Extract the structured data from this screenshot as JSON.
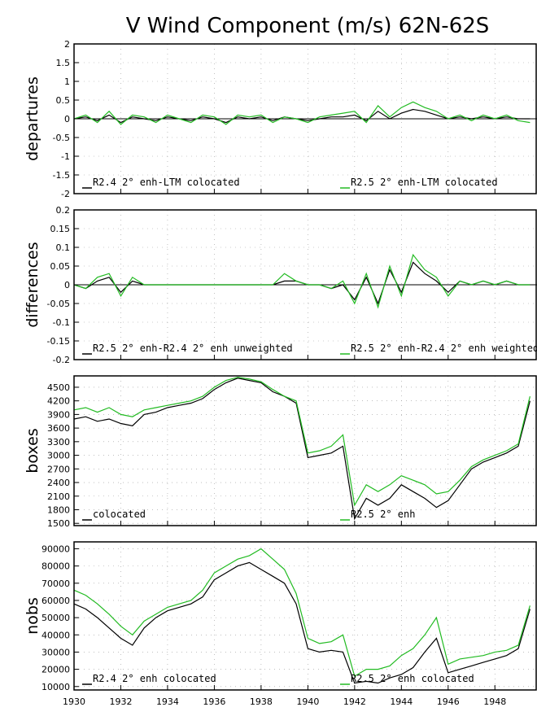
{
  "figure": {
    "title": "V Wind Component (m/s) 62N-62S"
  },
  "colors": {
    "series_a": "#000000",
    "series_b": "#22bb22",
    "grid": "#999999",
    "zero": "#000000"
  },
  "x_axis": {
    "range": [
      1930,
      1949.8
    ],
    "ticks": [
      1930,
      1932,
      1934,
      1936,
      1938,
      1940,
      1942,
      1944,
      1946,
      1948
    ],
    "tick_labels": [
      "1930",
      "1932",
      "1934",
      "1936",
      "1938",
      "1940",
      "1942",
      "1944",
      "1946",
      "1948"
    ]
  },
  "chart_data": [
    {
      "type": "line",
      "ylabel": "departures",
      "ylim": [
        -2,
        2
      ],
      "yticks": [
        -2,
        -1.5,
        -1,
        -0.5,
        0,
        0.5,
        1,
        1.5,
        2
      ],
      "ytick_labels": [
        "-2",
        "-1.5",
        "-1",
        "-0.5",
        "0",
        "0.5",
        "1",
        "1.5",
        "2"
      ],
      "zero_line": true,
      "grid": true,
      "series": [
        {
          "name": "R2.4 2° enh-LTM colocated",
          "x": [
            1930,
            1930.5,
            1931,
            1931.5,
            1932,
            1932.5,
            1933,
            1933.5,
            1934,
            1934.5,
            1935,
            1935.5,
            1936,
            1936.5,
            1937,
            1937.5,
            1938,
            1938.5,
            1939,
            1939.5,
            1940,
            1940.5,
            1941,
            1941.5,
            1942,
            1942.5,
            1943,
            1943.5,
            1944,
            1944.5,
            1945,
            1945.5,
            1946,
            1946.5,
            1947,
            1947.5,
            1948,
            1948.5,
            1949,
            1949.5
          ],
          "y": [
            0.0,
            0.05,
            -0.05,
            0.1,
            -0.1,
            0.05,
            0.0,
            -0.05,
            0.05,
            0.0,
            -0.05,
            0.05,
            0.0,
            -0.1,
            0.05,
            0.0,
            0.05,
            -0.05,
            0.05,
            0.0,
            -0.05,
            0.0,
            0.05,
            0.05,
            0.1,
            -0.05,
            0.2,
            0.0,
            0.15,
            0.25,
            0.2,
            0.1,
            0.0,
            0.05,
            0.0,
            0.05,
            0.0,
            0.05,
            0.0,
            0.0
          ]
        },
        {
          "name": "R2.5 2° enh-LTM colocated",
          "x": [
            1930,
            1930.5,
            1931,
            1931.5,
            1932,
            1932.5,
            1933,
            1933.5,
            1934,
            1934.5,
            1935,
            1935.5,
            1936,
            1936.5,
            1937,
            1937.5,
            1938,
            1938.5,
            1939,
            1939.5,
            1940,
            1940.5,
            1941,
            1941.5,
            1942,
            1942.5,
            1943,
            1943.5,
            1944,
            1944.5,
            1945,
            1945.5,
            1946,
            1946.5,
            1947,
            1947.5,
            1948,
            1948.5,
            1949,
            1949.5
          ],
          "y": [
            0.0,
            0.1,
            -0.1,
            0.2,
            -0.15,
            0.1,
            0.05,
            -0.1,
            0.1,
            0.0,
            -0.1,
            0.1,
            0.05,
            -0.15,
            0.1,
            0.05,
            0.1,
            -0.1,
            0.05,
            0.0,
            -0.1,
            0.05,
            0.1,
            0.15,
            0.2,
            -0.1,
            0.35,
            0.05,
            0.3,
            0.45,
            0.3,
            0.2,
            0.0,
            0.1,
            -0.05,
            0.1,
            0.0,
            0.1,
            -0.05,
            -0.1
          ]
        }
      ]
    },
    {
      "type": "line",
      "ylabel": "differences",
      "ylim": [
        -0.2,
        0.2
      ],
      "yticks": [
        -0.2,
        -0.15,
        -0.1,
        -0.05,
        0,
        0.05,
        0.1,
        0.15,
        0.2
      ],
      "ytick_labels": [
        "-0.2",
        "-0.15",
        "-0.1",
        "-0.05",
        "0",
        "0.05",
        "0.1",
        "0.15",
        "0.2"
      ],
      "zero_line": true,
      "grid": true,
      "series": [
        {
          "name": "R2.5 2° enh-R2.4 2° enh unweighted",
          "x": [
            1930,
            1930.5,
            1931,
            1931.5,
            1932,
            1932.5,
            1933,
            1933.5,
            1934,
            1934.5,
            1935,
            1935.5,
            1936,
            1936.5,
            1937,
            1937.5,
            1938,
            1938.5,
            1939,
            1939.5,
            1940,
            1940.5,
            1941,
            1941.5,
            1942,
            1942.5,
            1943,
            1943.5,
            1944,
            1944.5,
            1945,
            1945.5,
            1946,
            1946.5,
            1947,
            1947.5,
            1948,
            1948.5,
            1949,
            1949.5
          ],
          "y": [
            0.0,
            -0.01,
            0.01,
            0.02,
            -0.02,
            0.01,
            0.0,
            0.0,
            0.0,
            0.0,
            0.0,
            0.0,
            0.0,
            0.0,
            0.0,
            0.0,
            0.0,
            0.0,
            0.01,
            0.01,
            0.0,
            0.0,
            -0.01,
            0.0,
            -0.04,
            0.02,
            -0.05,
            0.04,
            -0.02,
            0.06,
            0.03,
            0.01,
            -0.02,
            0.01,
            0.0,
            0.01,
            0.0,
            0.01,
            0.0,
            0.0
          ]
        },
        {
          "name": "R2.5 2° enh-R2.4 2° enh weighted",
          "x": [
            1930,
            1930.5,
            1931,
            1931.5,
            1932,
            1932.5,
            1933,
            1933.5,
            1934,
            1934.5,
            1935,
            1935.5,
            1936,
            1936.5,
            1937,
            1937.5,
            1938,
            1938.5,
            1939,
            1939.5,
            1940,
            1940.5,
            1941,
            1941.5,
            1942,
            1942.5,
            1943,
            1943.5,
            1944,
            1944.5,
            1945,
            1945.5,
            1946,
            1946.5,
            1947,
            1947.5,
            1948,
            1948.5,
            1949,
            1949.5
          ],
          "y": [
            0.0,
            -0.01,
            0.02,
            0.03,
            -0.03,
            0.02,
            0.0,
            0.0,
            0.0,
            0.0,
            0.0,
            0.0,
            0.0,
            0.0,
            0.0,
            0.0,
            0.0,
            0.0,
            0.03,
            0.01,
            0.0,
            0.0,
            -0.01,
            0.01,
            -0.05,
            0.03,
            -0.06,
            0.05,
            -0.03,
            0.08,
            0.04,
            0.02,
            -0.03,
            0.01,
            0.0,
            0.01,
            0.0,
            0.01,
            0.0,
            0.0
          ]
        }
      ]
    },
    {
      "type": "line",
      "ylabel": "boxes",
      "ylim": [
        1450,
        4750
      ],
      "yticks": [
        1500,
        1800,
        2100,
        2400,
        2700,
        3000,
        3300,
        3600,
        3900,
        4200,
        4500
      ],
      "ytick_labels": [
        "1500",
        "1800",
        "2100",
        "2400",
        "2700",
        "3000",
        "3300",
        "3600",
        "3900",
        "4200",
        "4500"
      ],
      "zero_line": false,
      "grid": true,
      "series": [
        {
          "name": "colocated",
          "x": [
            1930,
            1930.5,
            1931,
            1931.5,
            1932,
            1932.5,
            1933,
            1933.5,
            1934,
            1934.5,
            1935,
            1935.5,
            1936,
            1936.5,
            1937,
            1937.5,
            1938,
            1938.5,
            1939,
            1939.5,
            1940,
            1940.5,
            1941,
            1941.5,
            1942,
            1942.5,
            1943,
            1943.5,
            1944,
            1944.5,
            1945,
            1945.5,
            1946,
            1946.5,
            1947,
            1947.5,
            1948,
            1948.5,
            1949,
            1949.5
          ],
          "y": [
            3800,
            3850,
            3750,
            3800,
            3700,
            3650,
            3900,
            3950,
            4050,
            4100,
            4150,
            4250,
            4450,
            4600,
            4700,
            4650,
            4600,
            4400,
            4300,
            4150,
            2950,
            3000,
            3050,
            3200,
            1600,
            2050,
            1900,
            2050,
            2350,
            2200,
            2050,
            1850,
            2000,
            2350,
            2700,
            2850,
            2950,
            3050,
            3200,
            4200
          ]
        },
        {
          "name": "R2.5 2° enh",
          "x": [
            1930,
            1930.5,
            1931,
            1931.5,
            1932,
            1932.5,
            1933,
            1933.5,
            1934,
            1934.5,
            1935,
            1935.5,
            1936,
            1936.5,
            1937,
            1937.5,
            1938,
            1938.5,
            1939,
            1939.5,
            1940,
            1940.5,
            1941,
            1941.5,
            1942,
            1942.5,
            1943,
            1943.5,
            1944,
            1944.5,
            1945,
            1945.5,
            1946,
            1946.5,
            1947,
            1947.5,
            1948,
            1948.5,
            1949,
            1949.5
          ],
          "y": [
            4000,
            4050,
            3950,
            4050,
            3900,
            3850,
            4000,
            4050,
            4100,
            4150,
            4200,
            4300,
            4500,
            4650,
            4720,
            4680,
            4620,
            4450,
            4300,
            4200,
            3050,
            3100,
            3200,
            3450,
            1900,
            2350,
            2200,
            2350,
            2550,
            2450,
            2350,
            2150,
            2200,
            2450,
            2750,
            2900,
            3000,
            3100,
            3250,
            4300
          ]
        }
      ]
    },
    {
      "type": "line",
      "ylabel": "nobs",
      "ylim": [
        8000,
        94000
      ],
      "yticks": [
        10000,
        20000,
        30000,
        40000,
        50000,
        60000,
        70000,
        80000,
        90000
      ],
      "ytick_labels": [
        "10000",
        "20000",
        "30000",
        "40000",
        "50000",
        "60000",
        "70000",
        "80000",
        "90000"
      ],
      "zero_line": false,
      "grid": true,
      "series": [
        {
          "name": "R2.4 2° enh colocated",
          "x": [
            1930,
            1930.5,
            1931,
            1931.5,
            1932,
            1932.5,
            1933,
            1933.5,
            1934,
            1934.5,
            1935,
            1935.5,
            1936,
            1936.5,
            1937,
            1937.5,
            1938,
            1938.5,
            1939,
            1939.5,
            1940,
            1940.5,
            1941,
            1941.5,
            1942,
            1942.5,
            1943,
            1943.5,
            1944,
            1944.5,
            1945,
            1945.5,
            1946,
            1946.5,
            1947,
            1947.5,
            1948,
            1948.5,
            1949,
            1949.5
          ],
          "y": [
            58000,
            55000,
            50000,
            44000,
            38000,
            34000,
            44000,
            50000,
            54000,
            56000,
            58000,
            62000,
            72000,
            76000,
            80000,
            82000,
            78000,
            74000,
            70000,
            58000,
            32000,
            30000,
            31000,
            30000,
            12000,
            13000,
            12000,
            15000,
            17000,
            21000,
            30000,
            38000,
            18000,
            20000,
            22000,
            24000,
            26000,
            28000,
            32000,
            55000
          ]
        },
        {
          "name": "R2.5 2° enh colocated",
          "x": [
            1930,
            1930.5,
            1931,
            1931.5,
            1932,
            1932.5,
            1933,
            1933.5,
            1934,
            1934.5,
            1935,
            1935.5,
            1936,
            1936.5,
            1937,
            1937.5,
            1938,
            1938.5,
            1939,
            1939.5,
            1940,
            1940.5,
            1941,
            1941.5,
            1942,
            1942.5,
            1943,
            1943.5,
            1944,
            1944.5,
            1945,
            1945.5,
            1946,
            1946.5,
            1947,
            1947.5,
            1948,
            1948.5,
            1949,
            1949.5
          ],
          "y": [
            66000,
            63000,
            58000,
            52000,
            45000,
            40000,
            48000,
            52000,
            56000,
            58000,
            60000,
            66000,
            76000,
            80000,
            84000,
            86000,
            90000,
            84000,
            78000,
            64000,
            38000,
            35000,
            36000,
            40000,
            16000,
            20000,
            20000,
            22000,
            28000,
            32000,
            40000,
            50000,
            23000,
            26000,
            27000,
            28000,
            30000,
            31000,
            34000,
            57000
          ]
        }
      ]
    }
  ]
}
